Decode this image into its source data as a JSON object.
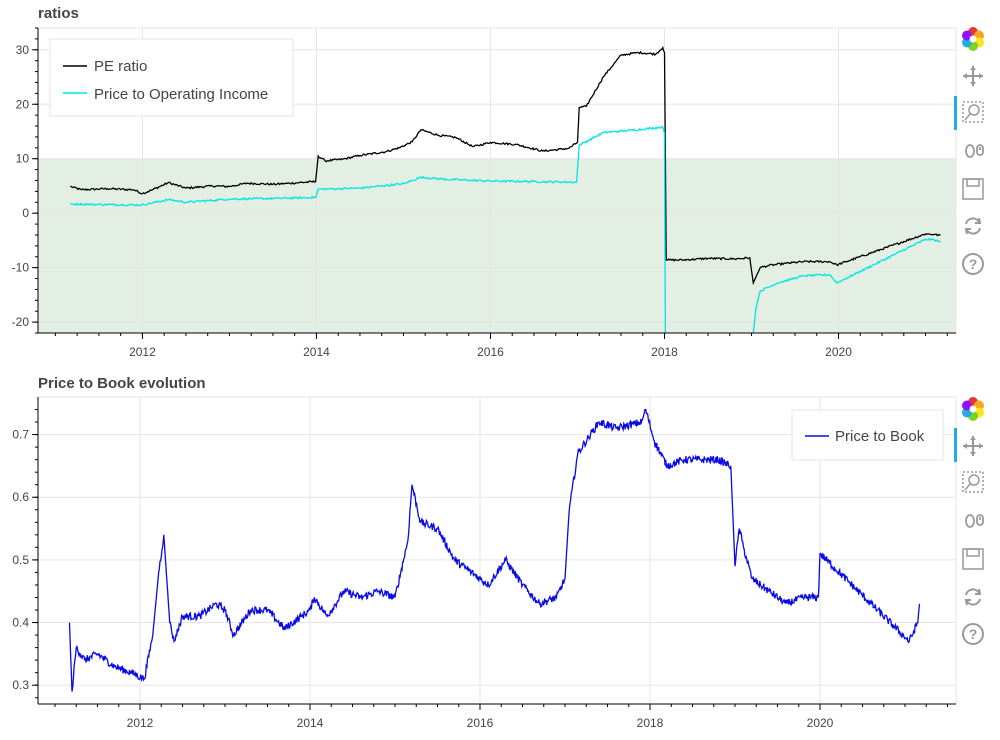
{
  "chart_data": [
    {
      "type": "line",
      "title": "ratios",
      "xlim": [
        2010.8,
        2021.35
      ],
      "ylim": [
        -22,
        34
      ],
      "xticks": [
        2012,
        2014,
        2016,
        2018,
        2020
      ],
      "xtick_labels": [
        "2012",
        "2014",
        "2016",
        "2018",
        "2020"
      ],
      "yticks": [
        -20,
        -10,
        0,
        10,
        20,
        30
      ],
      "ytick_labels": [
        "-20",
        "-10",
        "0",
        "10",
        "20",
        "30"
      ],
      "grid": true,
      "legend_position": "top-left",
      "shaded_band": {
        "y_from": -22,
        "y_to": 10,
        "color": "#e2efe2"
      },
      "series": [
        {
          "name": "PE ratio",
          "color": "#000000",
          "x": [
            2011.17,
            2011.3,
            2011.6,
            2011.9,
            2012.0,
            2012.1,
            2012.3,
            2012.5,
            2012.8,
            2013.0,
            2013.2,
            2013.5,
            2013.8,
            2013.99,
            2014.02,
            2014.1,
            2014.3,
            2014.5,
            2014.8,
            2014.95,
            2015.1,
            2015.2,
            2015.4,
            2015.6,
            2015.8,
            2016.0,
            2016.3,
            2016.6,
            2016.9,
            2017.0,
            2017.02,
            2017.1,
            2017.3,
            2017.5,
            2017.7,
            2017.9,
            2017.98,
            2018.0,
            2018.02,
            2018.2,
            2018.5,
            2018.8,
            2018.98,
            2019.02,
            2019.1,
            2019.2,
            2019.4,
            2019.6,
            2019.9,
            2019.98,
            2021.0,
            2021.1,
            2021.17
          ],
          "y": [
            4.9,
            4.3,
            4.5,
            4.3,
            3.6,
            4.2,
            5.6,
            4.6,
            5.0,
            4.9,
            5.5,
            5.3,
            5.6,
            5.8,
            10.5,
            9.6,
            9.9,
            10.6,
            11.3,
            12.0,
            13.1,
            15.3,
            14.3,
            13.9,
            12.2,
            13.0,
            12.6,
            11.4,
            11.9,
            13.0,
            19.4,
            19.6,
            25.1,
            29.0,
            29.5,
            29.2,
            30.4,
            29.5,
            -8.6,
            -8.6,
            -8.3,
            -8.4,
            -8.2,
            -12.8,
            -10.0,
            -9.6,
            -9.2,
            -8.9,
            -8.9,
            -9.5,
            -3.8,
            -3.9,
            -4.1
          ]
        },
        {
          "name": "Price to Operating Income",
          "color": "#00e5e5",
          "x": [
            2011.17,
            2011.5,
            2012.0,
            2012.3,
            2012.5,
            2013.0,
            2013.5,
            2013.99,
            2014.02,
            2014.5,
            2015.0,
            2015.2,
            2015.5,
            2016.0,
            2016.5,
            2016.99,
            2017.02,
            2017.3,
            2017.6,
            2017.98,
            2018.0,
            2018.01
          ],
          "y": [
            1.7,
            1.6,
            1.5,
            2.5,
            2.0,
            2.6,
            2.7,
            2.9,
            4.4,
            4.6,
            5.4,
            6.6,
            6.2,
            5.9,
            5.8,
            5.7,
            12.5,
            14.8,
            15.2,
            15.8,
            14.9,
            -22
          ],
          "x2": [
            2019.02,
            2019.05,
            2019.1,
            2019.3,
            2019.6,
            2019.9,
            2019.98,
            2021.0,
            2021.1,
            2021.17
          ],
          "y2": [
            -22,
            -17.5,
            -14.3,
            -12.8,
            -11.5,
            -11.3,
            -12.8,
            -4.8,
            -4.9,
            -5.3
          ]
        }
      ]
    },
    {
      "type": "line",
      "title": "Price to Book evolution",
      "xlim": [
        2010.8,
        2021.6
      ],
      "ylim": [
        0.27,
        0.76
      ],
      "xticks": [
        2012,
        2014,
        2016,
        2018,
        2020
      ],
      "xtick_labels": [
        "2012",
        "2014",
        "2016",
        "2018",
        "2020"
      ],
      "yticks": [
        0.3,
        0.4,
        0.5,
        0.6,
        0.7
      ],
      "ytick_labels": [
        "0.3",
        "0.4",
        "0.5",
        "0.6",
        "0.7"
      ],
      "grid": true,
      "legend_position": "top-right",
      "series": [
        {
          "name": "Price to Book",
          "color": "#0a0ae6",
          "x": [
            2011.17,
            2011.2,
            2011.25,
            2011.35,
            2011.5,
            2011.7,
            2011.9,
            2012.05,
            2012.15,
            2012.22,
            2012.28,
            2012.35,
            2012.4,
            2012.5,
            2012.7,
            2012.9,
            2013.0,
            2013.1,
            2013.3,
            2013.5,
            2013.7,
            2013.9,
            2014.0,
            2014.05,
            2014.2,
            2014.4,
            2014.6,
            2014.8,
            2015.0,
            2015.15,
            2015.2,
            2015.3,
            2015.5,
            2015.7,
            2015.9,
            2016.1,
            2016.3,
            2016.5,
            2016.7,
            2016.9,
            2017.0,
            2017.05,
            2017.15,
            2017.3,
            2017.4,
            2017.6,
            2017.9,
            2017.95,
            2018.05,
            2018.2,
            2018.4,
            2018.6,
            2018.8,
            2018.95,
            2019.0,
            2019.05,
            2019.1,
            2019.2,
            2019.4,
            2019.6,
            2019.8,
            2019.98,
            2020.0,
            2021.05,
            2021.15,
            2021.17
          ],
          "y": [
            0.4,
            0.29,
            0.36,
            0.34,
            0.35,
            0.33,
            0.32,
            0.31,
            0.38,
            0.48,
            0.54,
            0.4,
            0.37,
            0.41,
            0.41,
            0.43,
            0.42,
            0.38,
            0.42,
            0.42,
            0.39,
            0.41,
            0.42,
            0.44,
            0.41,
            0.45,
            0.44,
            0.45,
            0.44,
            0.53,
            0.62,
            0.56,
            0.55,
            0.5,
            0.48,
            0.46,
            0.5,
            0.46,
            0.43,
            0.44,
            0.47,
            0.58,
            0.67,
            0.7,
            0.72,
            0.71,
            0.72,
            0.74,
            0.69,
            0.65,
            0.66,
            0.66,
            0.66,
            0.65,
            0.49,
            0.55,
            0.52,
            0.47,
            0.45,
            0.43,
            0.44,
            0.44,
            0.51,
            0.37,
            0.4,
            0.43
          ]
        }
      ]
    }
  ],
  "toolbar": {
    "tools": [
      "bokeh-logo-icon",
      "pan-icon",
      "box-zoom-icon",
      "wheel-zoom-icon",
      "save-icon",
      "reset-icon",
      "help-icon"
    ]
  }
}
